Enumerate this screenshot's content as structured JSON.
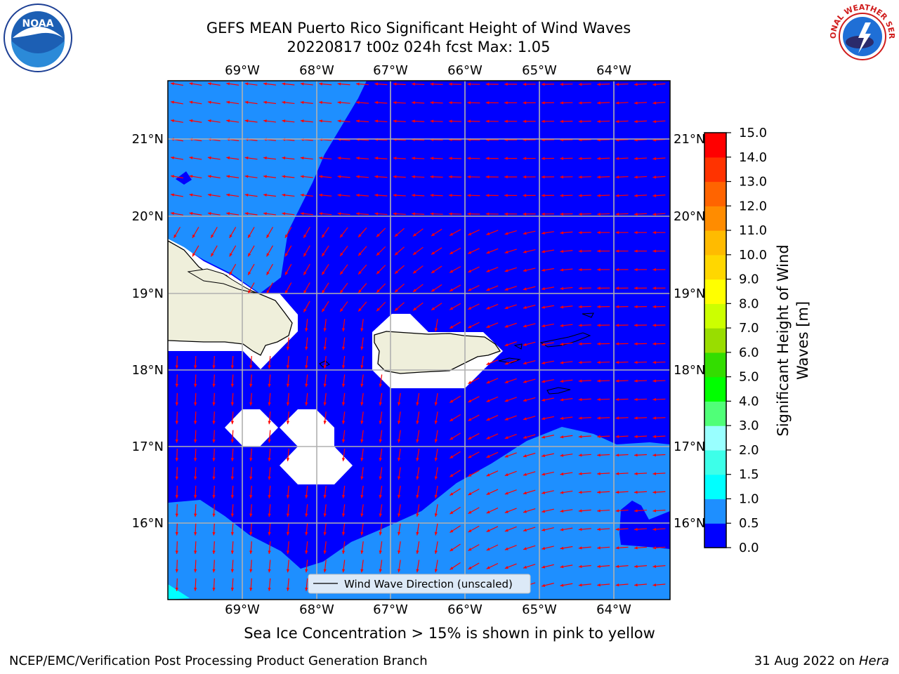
{
  "title": {
    "line1": "GEFS MEAN Puerto Rico Significant Height of Wind Waves",
    "line2": "20220817 t00z 024h fcst   Max: 1.05"
  },
  "map": {
    "lon_ticks": [
      "69°W",
      "68°W",
      "67°W",
      "66°W",
      "65°W",
      "64°W"
    ],
    "lat_ticks": [
      "21°N",
      "20°N",
      "19°N",
      "18°N",
      "17°N",
      "16°N"
    ],
    "extent": {
      "lon": [
        -70.0,
        -63.25
      ],
      "lat": [
        15.0,
        21.75
      ]
    },
    "legend_label": "Wind Wave Direction (unscaled)",
    "field_max": 1.05
  },
  "colorbar": {
    "label_line1": "Significant Height of Wind",
    "label_line2": "Waves [m]",
    "levels": [
      "0.0",
      "0.5",
      "1.0",
      "1.5",
      "2.0",
      "3.0",
      "4.0",
      "5.0",
      "6.0",
      "7.0",
      "8.0",
      "9.0",
      "10.0",
      "11.0",
      "12.0",
      "13.0",
      "14.0",
      "15.0"
    ],
    "colors": [
      "#0000ff",
      "#1e8fff",
      "#00ffff",
      "#3dffe9",
      "#99ffff",
      "#50ff78",
      "#00ff00",
      "#33dd00",
      "#99dd00",
      "#ccff00",
      "#ffff00",
      "#ffd700",
      "#ffbb00",
      "#ff8c00",
      "#ff6400",
      "#ff3300",
      "#ff0000"
    ]
  },
  "colors": {
    "band_0_05": "#0000ff",
    "band_05_10": "#1e8fff",
    "band_10_15": "#00ffff",
    "land": "#efefdb",
    "arrow": "#ff0000",
    "grid": "#b0b0b0"
  },
  "ice_note": "Sea Ice Concentration > 15% is shown in pink to yellow",
  "footer": {
    "left": "NCEP/EMC/Verification Post Processing Product Generation Branch",
    "right_date": "31 Aug 2022 on ",
    "right_machine": "Hera"
  },
  "logos": {
    "noaa": "NOAA",
    "nws": "NATIONAL WEATHER SERVICE"
  }
}
